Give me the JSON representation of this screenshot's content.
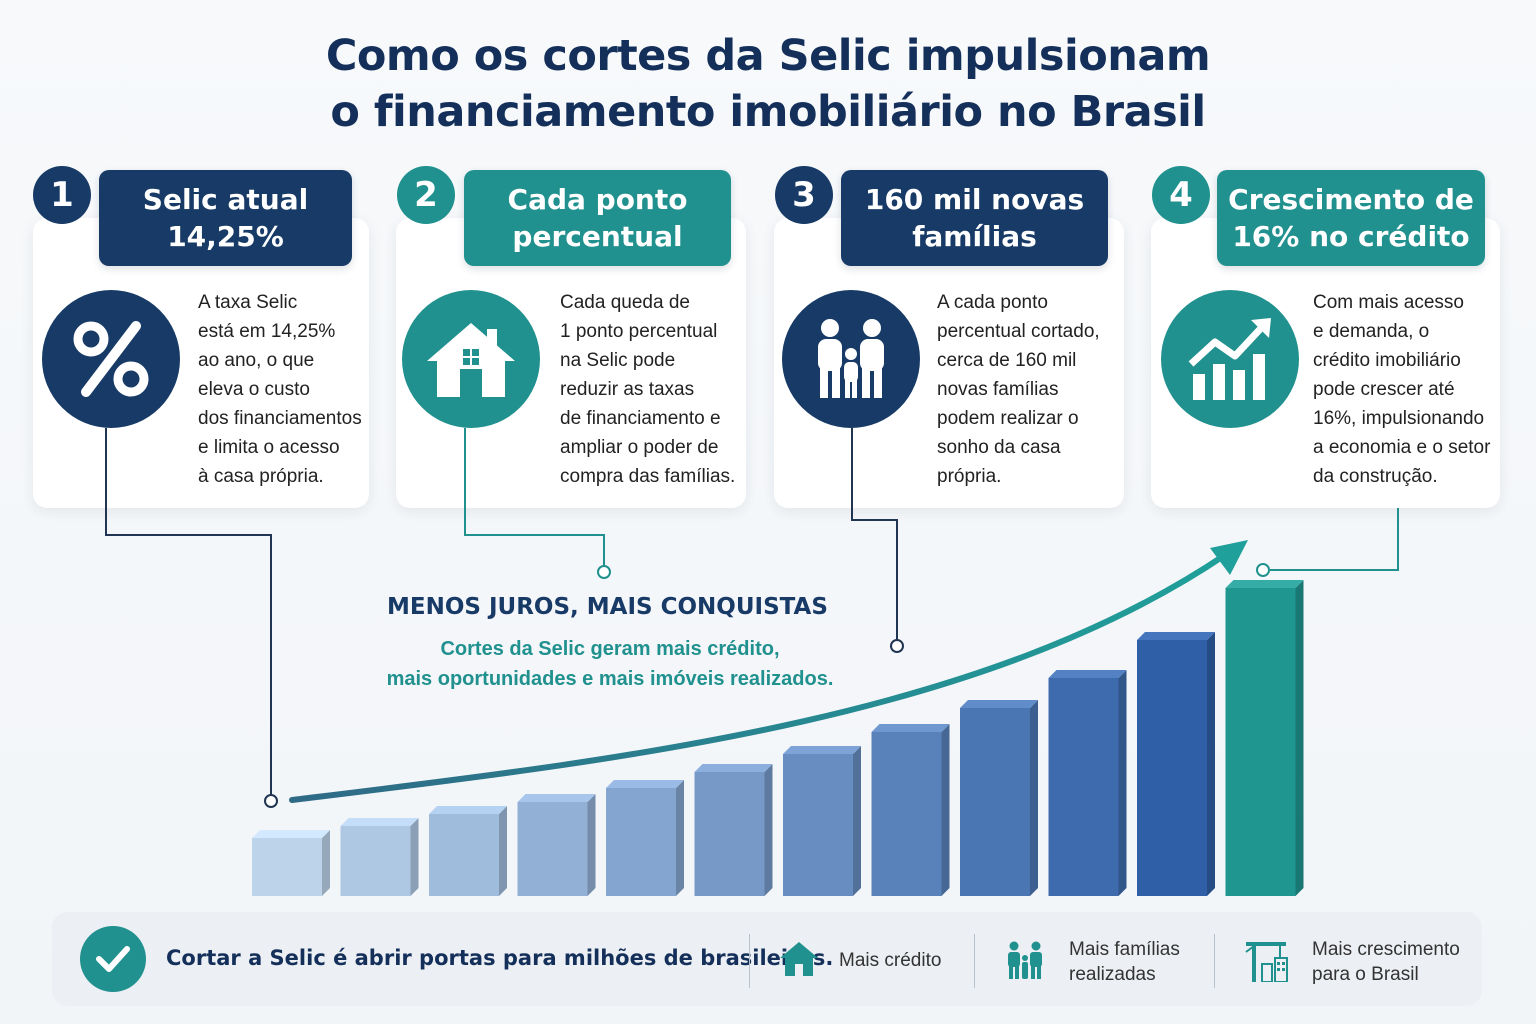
{
  "title": {
    "line1": "Como os cortes da Selic impulsionam",
    "line2": "o financiamento imobiliário no Brasil"
  },
  "colors": {
    "navy": "#173a66",
    "teal": "#20918e",
    "bar_light": "#bcd3ea",
    "bar_dark": "#2f5fa6"
  },
  "steps": [
    {
      "number": "1",
      "heading_line1": "Selic atual",
      "heading_line2": "14,25%",
      "icon": "percent-icon",
      "text": [
        "A taxa Selic",
        "está em 14,25%",
        "ao ano, o que",
        "eleva o custo",
        "dos financiamentos",
        "e limita o acesso",
        "à casa própria."
      ]
    },
    {
      "number": "2",
      "heading_line1": "Cada ponto",
      "heading_line2": "percentual",
      "icon": "house-icon",
      "text": [
        "Cada queda de",
        "1 ponto percentual",
        "na Selic pode",
        "reduzir as taxas",
        "de financiamento e",
        "ampliar o poder de",
        "compra das famílias."
      ]
    },
    {
      "number": "3",
      "heading_line1": "160 mil novas",
      "heading_line2": "famílias",
      "icon": "family-icon",
      "text": [
        "A cada ponto",
        "percentual cortado,",
        "cerca de 160 mil",
        "novas famílias",
        "podem realizar o",
        "sonho da casa",
        "própria."
      ]
    },
    {
      "number": "4",
      "heading_line1": "Crescimento de",
      "heading_line2": "16% no crédito",
      "icon": "growth-chart-icon",
      "text": [
        "Com mais acesso",
        "e demanda, o",
        "crédito imobiliário",
        "pode crescer até",
        "16%, impulsionando",
        "a economia e o setor",
        "da construção."
      ]
    }
  ],
  "middle": {
    "heading": "MENOS JUROS, MAIS CONQUISTAS",
    "sub_line1": "Cortes da Selic geram mais crédito,",
    "sub_line2": "mais oportunidades e mais imóveis realizados."
  },
  "growth_bars": {
    "count": 12,
    "trend": "increasing",
    "arrow": "upward-curve"
  },
  "footer": {
    "main": "Cortar a Selic é abrir portas para milhões de brasileiros.",
    "items": [
      {
        "icon": "house-icon",
        "line1": "Mais crédito",
        "line2": ""
      },
      {
        "icon": "family-icon",
        "line1": "Mais famílias",
        "line2": "realizadas"
      },
      {
        "icon": "crane-icon",
        "line1": "Mais crescimento",
        "line2": "para o Brasil"
      }
    ]
  }
}
